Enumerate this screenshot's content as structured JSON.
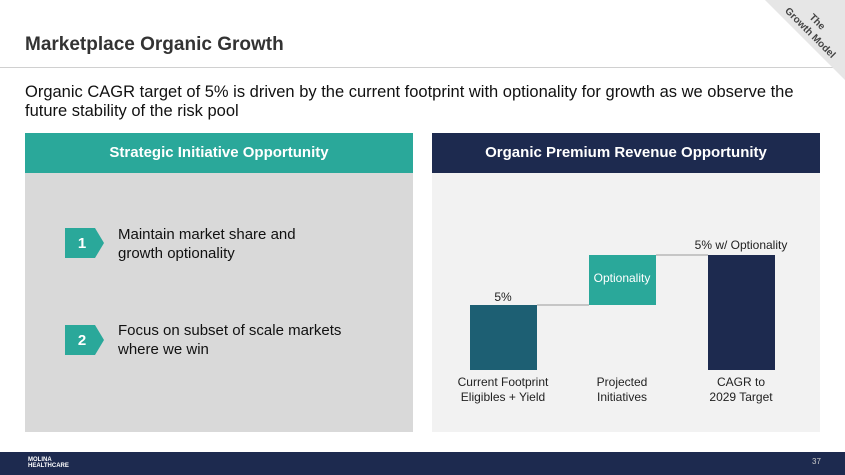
{
  "header": {
    "title": "Marketplace Organic Growth",
    "badge": [
      "The",
      "Growth Model"
    ]
  },
  "subtitle": "Organic CAGR target of 5% is driven by the current footprint with optionality for growth as we observe the future stability of the risk pool",
  "left_panel": {
    "title": "Strategic Initiative Opportunity",
    "items": [
      {
        "number": "1",
        "text": "Maintain market share and growth optionality"
      },
      {
        "number": "2",
        "text": "Focus on subset of scale markets where we win"
      }
    ]
  },
  "right_panel": {
    "title": "Organic Premium Revenue Opportunity",
    "bars": [
      {
        "label": [
          "Current Footprint",
          "Eligibles + Yield"
        ],
        "value_label": "5%"
      },
      {
        "label": [
          "Projected",
          "Initiatives"
        ],
        "value_label": "Optionality"
      },
      {
        "label": [
          "CAGR to",
          "2029 Target"
        ],
        "value_label": "5% w/ Optionality"
      }
    ]
  },
  "footer": {
    "logo": "MOLINA HEALTHCARE",
    "page_number": "37"
  }
}
